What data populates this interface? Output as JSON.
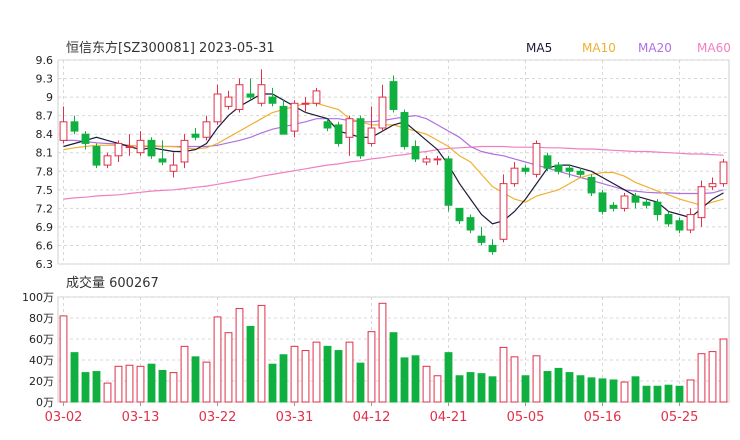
{
  "header": {
    "title": "恒信东方[SZ300081] 2023-05-31",
    "legend": [
      {
        "label": "MA5",
        "color": "#1a1a3a"
      },
      {
        "label": "MA10",
        "color": "#f0b030"
      },
      {
        "label": "MA20",
        "color": "#b070e0"
      },
      {
        "label": "MA60",
        "color": "#f080c0"
      }
    ]
  },
  "colors": {
    "up": "#e0304a",
    "down": "#10b040",
    "grid": "#d8d8d8",
    "axis": "#222222",
    "date": "#e0304a"
  },
  "chart_data": [
    {
      "type": "candlestick",
      "price_axis": {
        "ylim": [
          6.3,
          9.6
        ],
        "ticks": [
          9.6,
          9.3,
          9.0,
          8.7,
          8.4,
          8.1,
          7.8,
          7.5,
          7.2,
          6.9,
          6.6,
          6.3
        ]
      },
      "x_ticks": [
        {
          "label": "03-02",
          "index": 0
        },
        {
          "label": "03-13",
          "index": 7
        },
        {
          "label": "03-22",
          "index": 14
        },
        {
          "label": "03-31",
          "index": 21
        },
        {
          "label": "04-12",
          "index": 28
        },
        {
          "label": "04-21",
          "index": 35
        },
        {
          "label": "05-05",
          "index": 42
        },
        {
          "label": "05-16",
          "index": 49
        },
        {
          "label": "05-25",
          "index": 56
        }
      ],
      "ohlc": [
        [
          8.3,
          8.6,
          8.85,
          8.25
        ],
        [
          8.6,
          8.45,
          8.7,
          8.4
        ],
        [
          8.4,
          8.25,
          8.45,
          8.15
        ],
        [
          8.2,
          7.9,
          8.25,
          7.85
        ],
        [
          7.9,
          8.05,
          8.1,
          7.85
        ],
        [
          8.05,
          8.25,
          8.3,
          7.95
        ],
        [
          8.2,
          8.2,
          8.4,
          8.05
        ],
        [
          8.1,
          8.3,
          8.45,
          8.05
        ],
        [
          8.3,
          8.05,
          8.35,
          8.0
        ],
        [
          8.0,
          7.95,
          8.3,
          7.9
        ],
        [
          7.8,
          7.9,
          8.1,
          7.7
        ],
        [
          7.95,
          8.3,
          8.4,
          7.85
        ],
        [
          8.4,
          8.35,
          8.5,
          8.3
        ],
        [
          8.35,
          8.6,
          8.7,
          8.3
        ],
        [
          8.6,
          9.05,
          9.2,
          8.55
        ],
        [
          8.85,
          9.0,
          9.1,
          8.8
        ],
        [
          8.8,
          9.2,
          9.3,
          8.75
        ],
        [
          9.05,
          9.0,
          9.3,
          8.95
        ],
        [
          8.9,
          9.2,
          9.45,
          8.85
        ],
        [
          9.0,
          8.9,
          9.15,
          8.85
        ],
        [
          8.85,
          8.4,
          8.95,
          8.4
        ],
        [
          8.45,
          8.9,
          8.95,
          8.35
        ],
        [
          8.9,
          8.9,
          9.0,
          8.75
        ],
        [
          8.9,
          9.1,
          9.15,
          8.85
        ],
        [
          8.6,
          8.5,
          8.65,
          8.45
        ],
        [
          8.55,
          8.25,
          8.6,
          8.2
        ],
        [
          8.35,
          8.65,
          8.7,
          8.05
        ],
        [
          8.65,
          8.05,
          8.7,
          8.0
        ],
        [
          8.25,
          8.5,
          8.85,
          8.2
        ],
        [
          8.5,
          9.0,
          9.2,
          8.45
        ],
        [
          9.25,
          8.8,
          9.35,
          8.75
        ],
        [
          8.75,
          8.2,
          8.8,
          8.15
        ],
        [
          8.2,
          8.0,
          8.3,
          7.95
        ],
        [
          7.95,
          8.0,
          8.05,
          7.9
        ],
        [
          8.0,
          8.0,
          8.05,
          7.9
        ],
        [
          8.0,
          7.25,
          8.05,
          7.15
        ],
        [
          7.2,
          7.0,
          7.2,
          6.95
        ],
        [
          7.05,
          6.85,
          7.1,
          6.8
        ],
        [
          6.75,
          6.65,
          6.9,
          6.6
        ],
        [
          6.6,
          6.5,
          6.7,
          6.45
        ],
        [
          6.7,
          7.6,
          7.75,
          6.65
        ],
        [
          7.6,
          7.85,
          7.95,
          7.55
        ],
        [
          7.85,
          7.8,
          7.9,
          7.75
        ],
        [
          7.75,
          8.25,
          8.3,
          7.7
        ],
        [
          8.05,
          7.85,
          8.1,
          7.8
        ],
        [
          7.9,
          7.8,
          7.95,
          7.75
        ],
        [
          7.85,
          7.8,
          7.9,
          7.7
        ],
        [
          7.8,
          7.75,
          7.85,
          7.7
        ],
        [
          7.7,
          7.45,
          7.75,
          7.4
        ],
        [
          7.45,
          7.15,
          7.5,
          7.1
        ],
        [
          7.25,
          7.2,
          7.3,
          7.15
        ],
        [
          7.2,
          7.4,
          7.45,
          7.15
        ],
        [
          7.4,
          7.3,
          7.45,
          7.2
        ],
        [
          7.3,
          7.25,
          7.35,
          7.2
        ],
        [
          7.3,
          7.1,
          7.35,
          7.0
        ],
        [
          7.1,
          6.95,
          7.15,
          6.9
        ],
        [
          7.0,
          6.85,
          7.05,
          6.8
        ],
        [
          6.85,
          7.1,
          7.2,
          6.8
        ],
        [
          7.05,
          7.55,
          7.65,
          6.9
        ],
        [
          7.55,
          7.6,
          7.7,
          7.5
        ],
        [
          7.6,
          7.95,
          8.0,
          7.55
        ]
      ],
      "ma5": [
        8.2,
        8.25,
        8.3,
        8.35,
        8.3,
        8.25,
        8.2,
        8.15,
        8.18,
        8.15,
        8.12,
        8.12,
        8.15,
        8.25,
        8.5,
        8.7,
        8.85,
        8.95,
        9.05,
        9.05,
        8.95,
        8.85,
        8.75,
        8.7,
        8.65,
        8.45,
        8.4,
        8.35,
        8.35,
        8.45,
        8.55,
        8.6,
        8.45,
        8.3,
        8.15,
        7.9,
        7.6,
        7.35,
        7.1,
        6.95,
        7.0,
        7.15,
        7.35,
        7.6,
        7.85,
        7.9,
        7.9,
        7.85,
        7.8,
        7.7,
        7.6,
        7.5,
        7.4,
        7.35,
        7.3,
        7.15,
        7.1,
        7.05,
        7.2,
        7.35,
        7.45
      ],
      "ma10": [
        8.15,
        8.18,
        8.2,
        8.22,
        8.22,
        8.22,
        8.22,
        8.2,
        8.22,
        8.2,
        8.2,
        8.18,
        8.16,
        8.18,
        8.25,
        8.35,
        8.45,
        8.55,
        8.65,
        8.75,
        8.8,
        8.85,
        8.9,
        8.9,
        8.85,
        8.8,
        8.65,
        8.6,
        8.55,
        8.55,
        8.55,
        8.5,
        8.45,
        8.4,
        8.3,
        8.2,
        8.05,
        7.95,
        7.75,
        7.55,
        7.45,
        7.35,
        7.3,
        7.4,
        7.45,
        7.5,
        7.6,
        7.7,
        7.75,
        7.78,
        7.78,
        7.72,
        7.62,
        7.55,
        7.48,
        7.42,
        7.35,
        7.3,
        7.25,
        7.3,
        7.35
      ],
      "ma20": [
        8.3,
        8.3,
        8.28,
        8.26,
        8.25,
        8.24,
        8.22,
        8.2,
        8.2,
        8.2,
        8.2,
        8.2,
        8.2,
        8.2,
        8.22,
        8.26,
        8.3,
        8.35,
        8.42,
        8.48,
        8.52,
        8.56,
        8.6,
        8.65,
        8.65,
        8.65,
        8.62,
        8.6,
        8.6,
        8.62,
        8.65,
        8.68,
        8.7,
        8.65,
        8.55,
        8.45,
        8.35,
        8.2,
        8.12,
        8.08,
        8.05,
        8.0,
        7.95,
        7.9,
        7.85,
        7.8,
        7.75,
        7.7,
        7.65,
        7.6,
        7.55,
        7.5,
        7.48,
        7.46,
        7.45,
        7.45,
        7.44,
        7.44,
        7.44,
        7.45,
        7.5
      ],
      "ma60": [
        7.35,
        7.37,
        7.38,
        7.4,
        7.41,
        7.42,
        7.44,
        7.46,
        7.48,
        7.49,
        7.5,
        7.52,
        7.54,
        7.56,
        7.59,
        7.62,
        7.65,
        7.68,
        7.72,
        7.75,
        7.78,
        7.81,
        7.84,
        7.87,
        7.9,
        7.92,
        7.95,
        7.97,
        8.0,
        8.02,
        8.05,
        8.07,
        8.1,
        8.12,
        8.15,
        8.17,
        8.18,
        8.19,
        8.2,
        8.2,
        8.2,
        8.19,
        8.19,
        8.19,
        8.18,
        8.18,
        8.17,
        8.16,
        8.16,
        8.15,
        8.14,
        8.13,
        8.12,
        8.12,
        8.11,
        8.1,
        8.09,
        8.08,
        8.08,
        8.07,
        8.06
      ]
    },
    {
      "type": "bar",
      "title": "成交量 600267",
      "unit": "万",
      "ylim": [
        0,
        100
      ],
      "ticks": [
        100,
        80,
        60,
        40,
        20,
        0
      ],
      "tick_labels": [
        "100万",
        "80万",
        "60万",
        "40万",
        "20万",
        "0万"
      ],
      "values": [
        82,
        47,
        28,
        29,
        18,
        34,
        35,
        34,
        36,
        30,
        28,
        53,
        43,
        38,
        81,
        66,
        89,
        72,
        92,
        36,
        45,
        53,
        49,
        57,
        53,
        49,
        57,
        37,
        67,
        94,
        66,
        42,
        44,
        34,
        25,
        47,
        25,
        28,
        27,
        24,
        52,
        43,
        25,
        44,
        29,
        32,
        28,
        25,
        23,
        22,
        21,
        19,
        24,
        15,
        15,
        16,
        15,
        21,
        46,
        48,
        60
      ],
      "up": [
        1,
        0,
        0,
        0,
        1,
        1,
        1,
        1,
        0,
        0,
        1,
        1,
        0,
        1,
        1,
        1,
        1,
        0,
        1,
        0,
        0,
        1,
        1,
        1,
        0,
        0,
        1,
        0,
        1,
        1,
        0,
        0,
        0,
        1,
        1,
        0,
        0,
        0,
        0,
        0,
        1,
        1,
        0,
        1,
        0,
        0,
        0,
        0,
        0,
        0,
        0,
        1,
        0,
        0,
        0,
        0,
        0,
        1,
        1,
        1,
        1
      ]
    }
  ]
}
